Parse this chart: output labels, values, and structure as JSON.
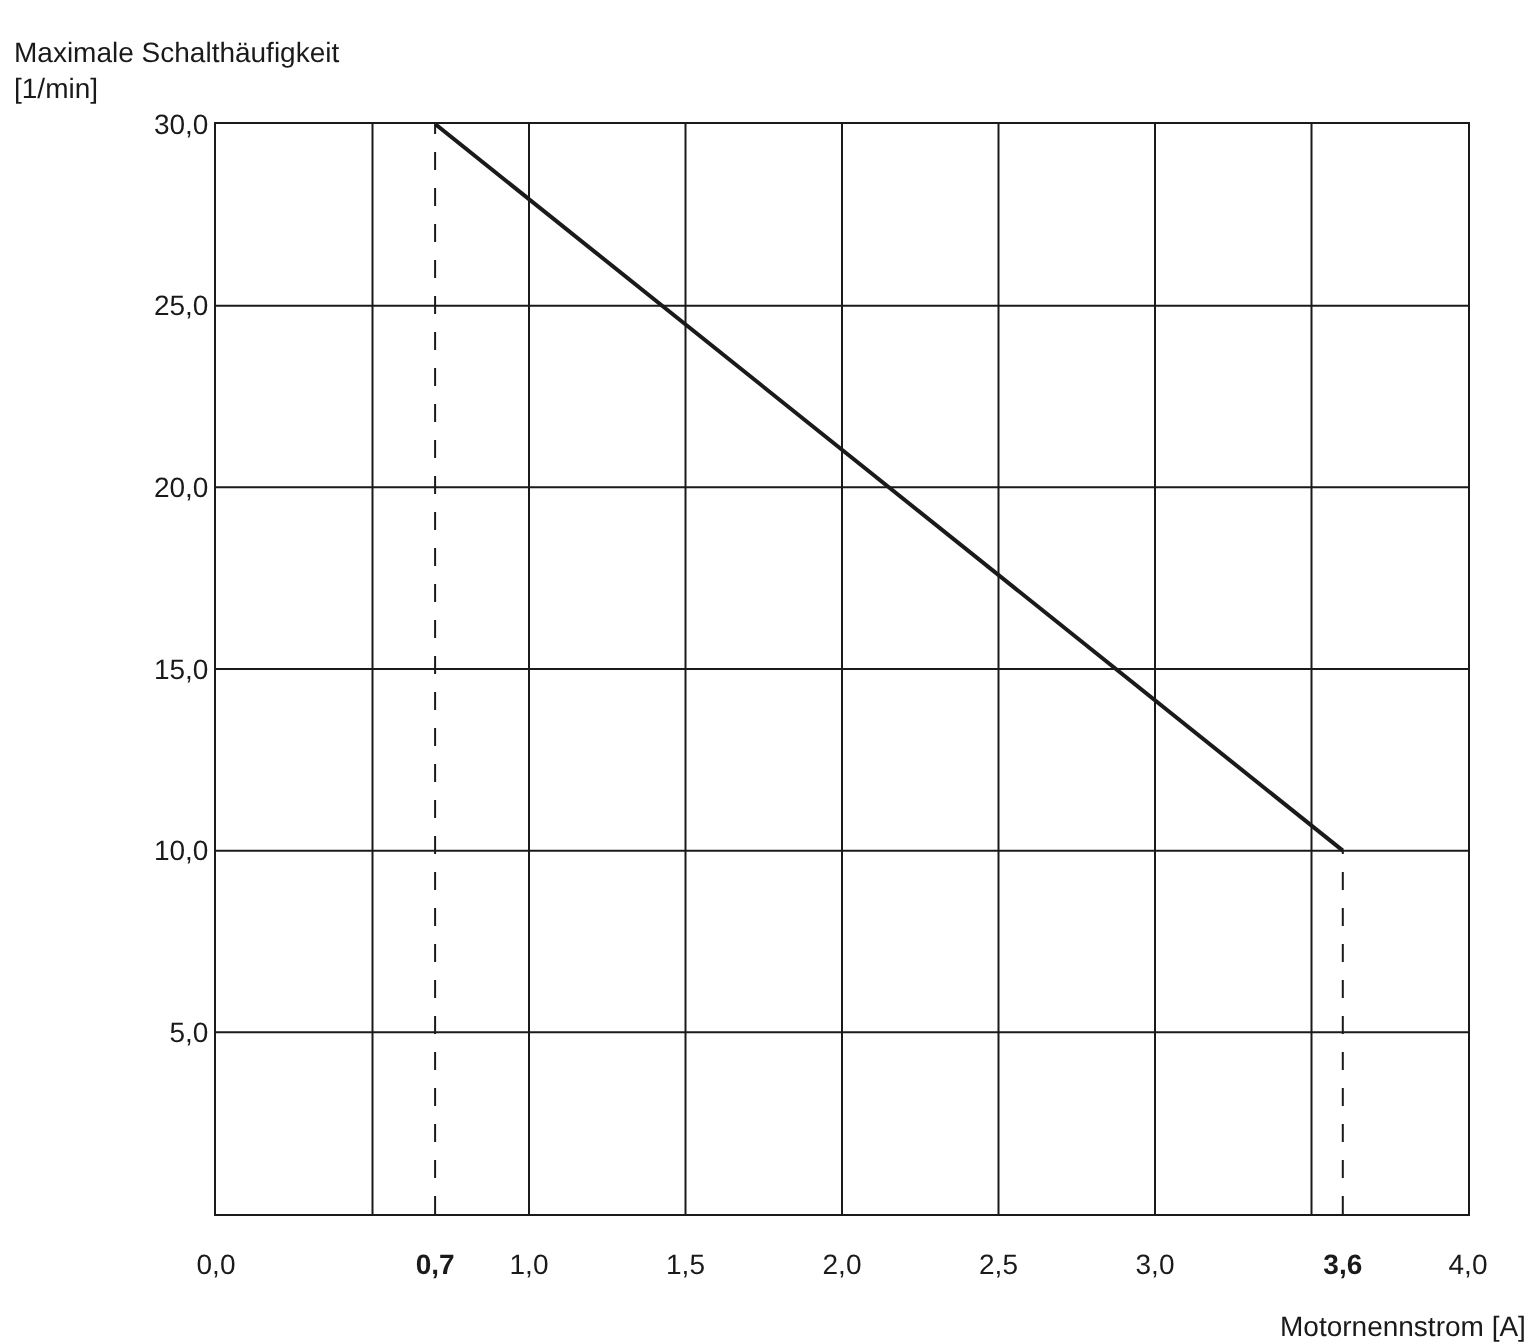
{
  "chart_data": {
    "type": "line",
    "xlabel": "Motornennstrom [A]",
    "ylabel": "Maximale Schalthäufigkeit\n[1/min]",
    "x": [
      0.7,
      3.6
    ],
    "series": [
      {
        "color": "#1a1a1a",
        "values": [
          30,
          10
        ]
      }
    ],
    "xlim": [
      0,
      4
    ],
    "ylim": [
      0,
      30
    ],
    "xticks": [
      {
        "value": 0,
        "label": "0,0"
      },
      {
        "value": 0.5,
        "label": null
      },
      {
        "value": 0.7,
        "label": "0,7"
      },
      {
        "value": 1,
        "label": "1,0"
      },
      {
        "value": 1.5,
        "label": "1,5"
      },
      {
        "value": 2,
        "label": "2,0"
      },
      {
        "value": 2.5,
        "label": "2,5"
      },
      {
        "value": 3,
        "label": "3,0"
      },
      {
        "value": 3.5,
        "label": null
      },
      {
        "value": 3.6,
        "label": "3,6"
      },
      {
        "value": 4,
        "label": "4,0"
      }
    ],
    "yticks": [
      {
        "value": 0,
        "label": null
      },
      {
        "value": 5,
        "label": "5,0"
      },
      {
        "value": 10,
        "label": "10,0"
      },
      {
        "value": 15,
        "label": "15,0"
      },
      {
        "value": 20,
        "label": "20,0"
      },
      {
        "value": 25,
        "label": "25,0"
      },
      {
        "value": 30,
        "label": "30,0"
      }
    ],
    "ref_lines": [
      {
        "axis": "x",
        "value": 0.7,
        "line_style": "dashed"
      },
      {
        "axis": "x",
        "value": 3.6,
        "line_style": "dashed"
      }
    ],
    "grid": true,
    "marker": "none",
    "line_style": "solid"
  }
}
